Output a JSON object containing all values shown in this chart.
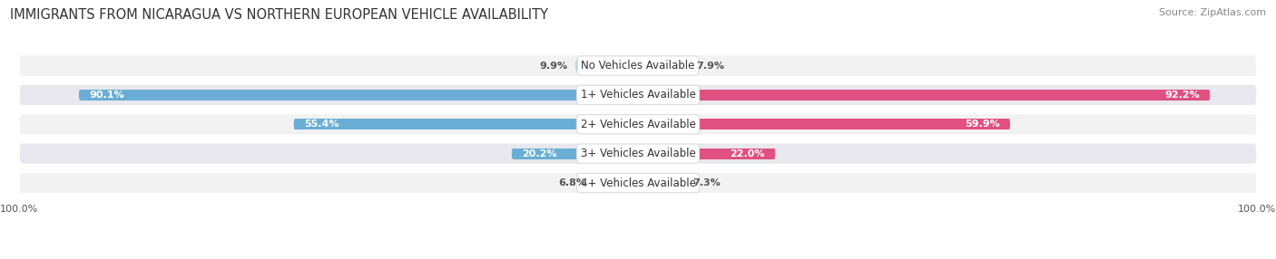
{
  "title": "IMMIGRANTS FROM NICARAGUA VS NORTHERN EUROPEAN VEHICLE AVAILABILITY",
  "source": "Source: ZipAtlas.com",
  "categories": [
    "No Vehicles Available",
    "1+ Vehicles Available",
    "2+ Vehicles Available",
    "3+ Vehicles Available",
    "4+ Vehicles Available"
  ],
  "nicaragua_values": [
    9.9,
    90.1,
    55.4,
    20.2,
    6.8
  ],
  "northern_values": [
    7.9,
    92.2,
    59.9,
    22.0,
    7.3
  ],
  "nicaragua_color_large": "#6aaed6",
  "nicaragua_color_small": "#aacce8",
  "northern_color_large": "#e05080",
  "northern_color_small": "#f4a0bc",
  "row_bg_color_odd": "#f2f2f2",
  "row_bg_color_even": "#e8e8ee",
  "max_value": 100.0,
  "label_outside_color": "#555555",
  "label_inside_color": "#ffffff",
  "title_fontsize": 10.5,
  "source_fontsize": 8,
  "bar_label_fontsize": 8,
  "category_fontsize": 8.5,
  "legend_fontsize": 8.5,
  "axis_label_fontsize": 8,
  "background_color": "#ffffff"
}
